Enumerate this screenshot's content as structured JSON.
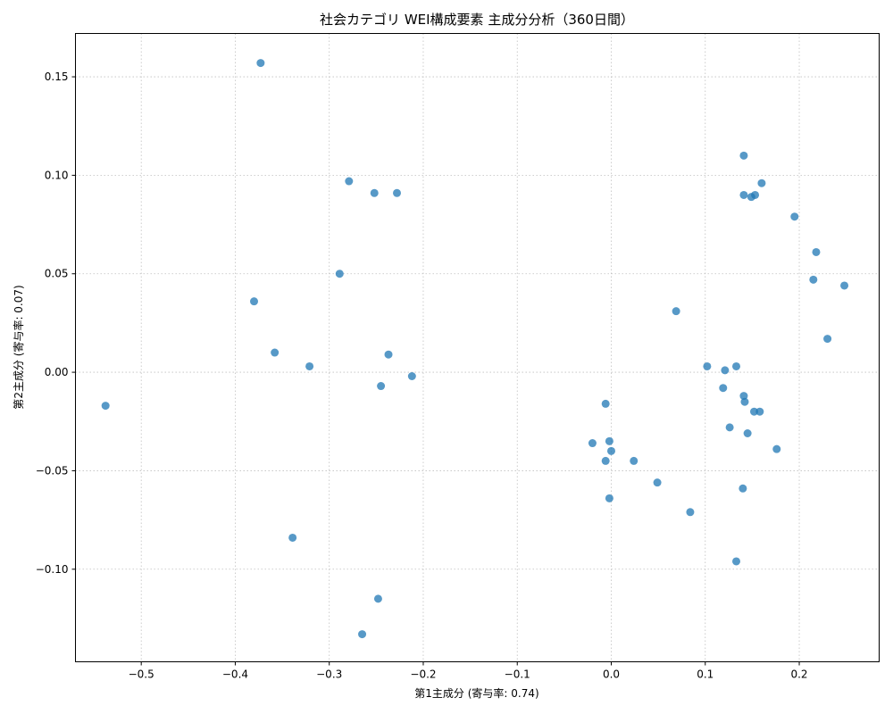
{
  "chart_data": {
    "type": "scatter",
    "title": "社会カテゴリ WEI構成要素 主成分分析（360日間）",
    "xlabel": "第1主成分 (寄与率: 0.74)",
    "ylabel": "第2主成分 (寄与率: 0.07)",
    "xlim": [
      -0.57,
      0.285
    ],
    "ylim": [
      -0.147,
      0.172
    ],
    "xticks": [
      -0.5,
      -0.4,
      -0.3,
      -0.2,
      -0.1,
      0.0,
      0.1,
      0.2
    ],
    "xtick_labels": [
      "−0.5",
      "−0.4",
      "−0.3",
      "−0.2",
      "−0.1",
      "0.0",
      "0.1",
      "0.2"
    ],
    "yticks": [
      -0.1,
      -0.05,
      0.0,
      0.05,
      0.1,
      0.15
    ],
    "ytick_labels": [
      "−0.10",
      "−0.05",
      "0.00",
      "0.05",
      "0.10",
      "0.15"
    ],
    "grid": true,
    "point_color": "#1f77b4",
    "series": [
      {
        "points": [
          [
            -0.373,
            0.157
          ],
          [
            -0.279,
            0.097
          ],
          [
            -0.252,
            0.091
          ],
          [
            -0.228,
            0.091
          ],
          [
            -0.289,
            0.05
          ],
          [
            -0.38,
            0.036
          ],
          [
            -0.358,
            0.01
          ],
          [
            -0.321,
            0.003
          ],
          [
            -0.237,
            0.009
          ],
          [
            -0.245,
            -0.007
          ],
          [
            -0.212,
            -0.002
          ],
          [
            -0.538,
            -0.017
          ],
          [
            -0.339,
            -0.084
          ],
          [
            -0.248,
            -0.115
          ],
          [
            -0.265,
            -0.133
          ],
          [
            0.141,
            0.11
          ],
          [
            0.141,
            0.09
          ],
          [
            0.149,
            0.089
          ],
          [
            0.153,
            0.09
          ],
          [
            0.16,
            0.096
          ],
          [
            0.195,
            0.079
          ],
          [
            0.218,
            0.061
          ],
          [
            0.215,
            0.047
          ],
          [
            0.248,
            0.044
          ],
          [
            0.23,
            0.017
          ],
          [
            0.069,
            0.031
          ],
          [
            0.102,
            0.003
          ],
          [
            0.121,
            0.001
          ],
          [
            0.133,
            0.003
          ],
          [
            0.119,
            -0.008
          ],
          [
            0.141,
            -0.012
          ],
          [
            0.142,
            -0.015
          ],
          [
            0.152,
            -0.02
          ],
          [
            0.158,
            -0.02
          ],
          [
            0.126,
            -0.028
          ],
          [
            0.145,
            -0.031
          ],
          [
            0.176,
            -0.039
          ],
          [
            -0.006,
            -0.016
          ],
          [
            -0.02,
            -0.036
          ],
          [
            -0.002,
            -0.035
          ],
          [
            0.0,
            -0.04
          ],
          [
            -0.006,
            -0.045
          ],
          [
            0.024,
            -0.045
          ],
          [
            0.049,
            -0.056
          ],
          [
            -0.002,
            -0.064
          ],
          [
            0.084,
            -0.071
          ],
          [
            0.14,
            -0.059
          ],
          [
            0.133,
            -0.096
          ]
        ]
      }
    ]
  }
}
